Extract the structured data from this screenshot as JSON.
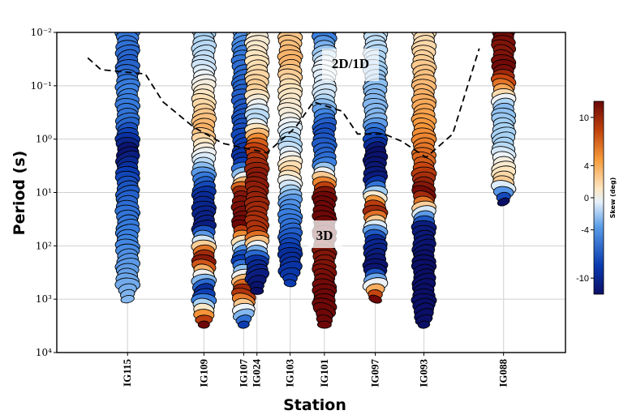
{
  "chart_data": {
    "type": "scatter",
    "subtype": "phase-tensor-ellipses",
    "title": "",
    "xlabel": "Station",
    "ylabel": "Period (s)",
    "y_scale": "log",
    "y_reversed": true,
    "ylim": [
      0.01,
      10000
    ],
    "y_ticks": [
      {
        "value": 0.01,
        "label": "10⁻²"
      },
      {
        "value": 0.1,
        "label": "10⁻¹"
      },
      {
        "value": 1,
        "label": "10⁰"
      },
      {
        "value": 10,
        "label": "10¹"
      },
      {
        "value": 100,
        "label": "10²"
      },
      {
        "value": 1000,
        "label": "10³"
      },
      {
        "value": 10000,
        "label": "10⁴"
      }
    ],
    "grid": true,
    "stations": [
      {
        "name": "IG115",
        "dist": 0.0,
        "pmin": 0.01,
        "pmax": 1000,
        "skew_profile": [
          -5,
          -7,
          -5,
          -6,
          -12,
          -8,
          -6,
          -5,
          -4,
          -3
        ]
      },
      {
        "name": "IG109",
        "dist": 3.45,
        "pmin": 0.01,
        "pmax": 3000,
        "skew_profile": [
          -2,
          -1,
          2,
          4,
          -1,
          -10,
          -11,
          12,
          -11,
          12
        ]
      },
      {
        "name": "IG107",
        "dist": 5.25,
        "pmin": 0.01,
        "pmax": 3000,
        "skew_profile": [
          -4,
          -6,
          -7,
          -8,
          -10,
          11,
          12,
          -10,
          11,
          -9
        ]
      },
      {
        "name": "IG024",
        "dist": 5.85,
        "pmin": 0.01,
        "pmax": 700,
        "skew_profile": [
          1,
          2,
          3,
          -2,
          8,
          11,
          10,
          9,
          -10,
          -12
        ]
      },
      {
        "name": "IG103",
        "dist": 7.35,
        "pmin": 0.01,
        "pmax": 500,
        "skew_profile": [
          3,
          4,
          2,
          1,
          -2,
          3,
          -4,
          -6,
          -10,
          -9
        ]
      },
      {
        "name": "IG101",
        "dist": 8.9,
        "pmin": 0.01,
        "pmax": 3000,
        "skew_profile": [
          -6,
          0,
          -1,
          -8,
          -6,
          12,
          12,
          11,
          12,
          12
        ]
      },
      {
        "name": "IG097",
        "dist": 11.2,
        "pmin": 0.01,
        "pmax": 1000,
        "skew_profile": [
          -1,
          -2,
          -3,
          -3,
          -12,
          -11,
          11,
          -10,
          -12,
          12
        ]
      },
      {
        "name": "IG093",
        "dist": 13.4,
        "pmin": 0.01,
        "pmax": 3000,
        "skew_profile": [
          2,
          3,
          4,
          5,
          7,
          12,
          -11,
          -12,
          -12,
          -12
        ]
      },
      {
        "name": "IG088",
        "dist": 17.0,
        "pmin": 0.01,
        "pmax": 15,
        "skew_profile": [
          12,
          11,
          12,
          5,
          -3,
          -2,
          -2,
          1,
          3,
          -12
        ]
      }
    ],
    "dashed_boundary": {
      "label": "2D/1D",
      "points": [
        [
          -1.8,
          0.03
        ],
        [
          -1.2,
          0.05
        ],
        [
          0.8,
          0.06
        ],
        [
          1.6,
          0.2
        ],
        [
          3.0,
          0.6
        ],
        [
          4.3,
          1.2
        ],
        [
          6.3,
          1.8
        ],
        [
          7.6,
          0.6
        ],
        [
          8.4,
          0.2
        ],
        [
          9.7,
          0.3
        ],
        [
          10.4,
          0.8
        ],
        [
          11.6,
          0.8
        ],
        [
          12.4,
          1.1
        ],
        [
          13.5,
          2.2
        ],
        [
          14.7,
          0.8
        ],
        [
          15.9,
          0.02
        ]
      ]
    },
    "annotations": [
      "2D/1D",
      "3D"
    ],
    "colorbar": {
      "label": "Skew (deg)",
      "range": [
        -12,
        12
      ],
      "ticks": [
        10,
        4,
        0,
        -4,
        -10
      ],
      "colormap": "blue-white-orange-darkred"
    }
  },
  "colors": {
    "dark_blue": "#0b0f66",
    "blue": "#1f5ec8",
    "light_blue": "#a9d4f5",
    "pale": "#fdecc8",
    "orange": "#f28c28",
    "dark_red": "#7a0c0c"
  }
}
